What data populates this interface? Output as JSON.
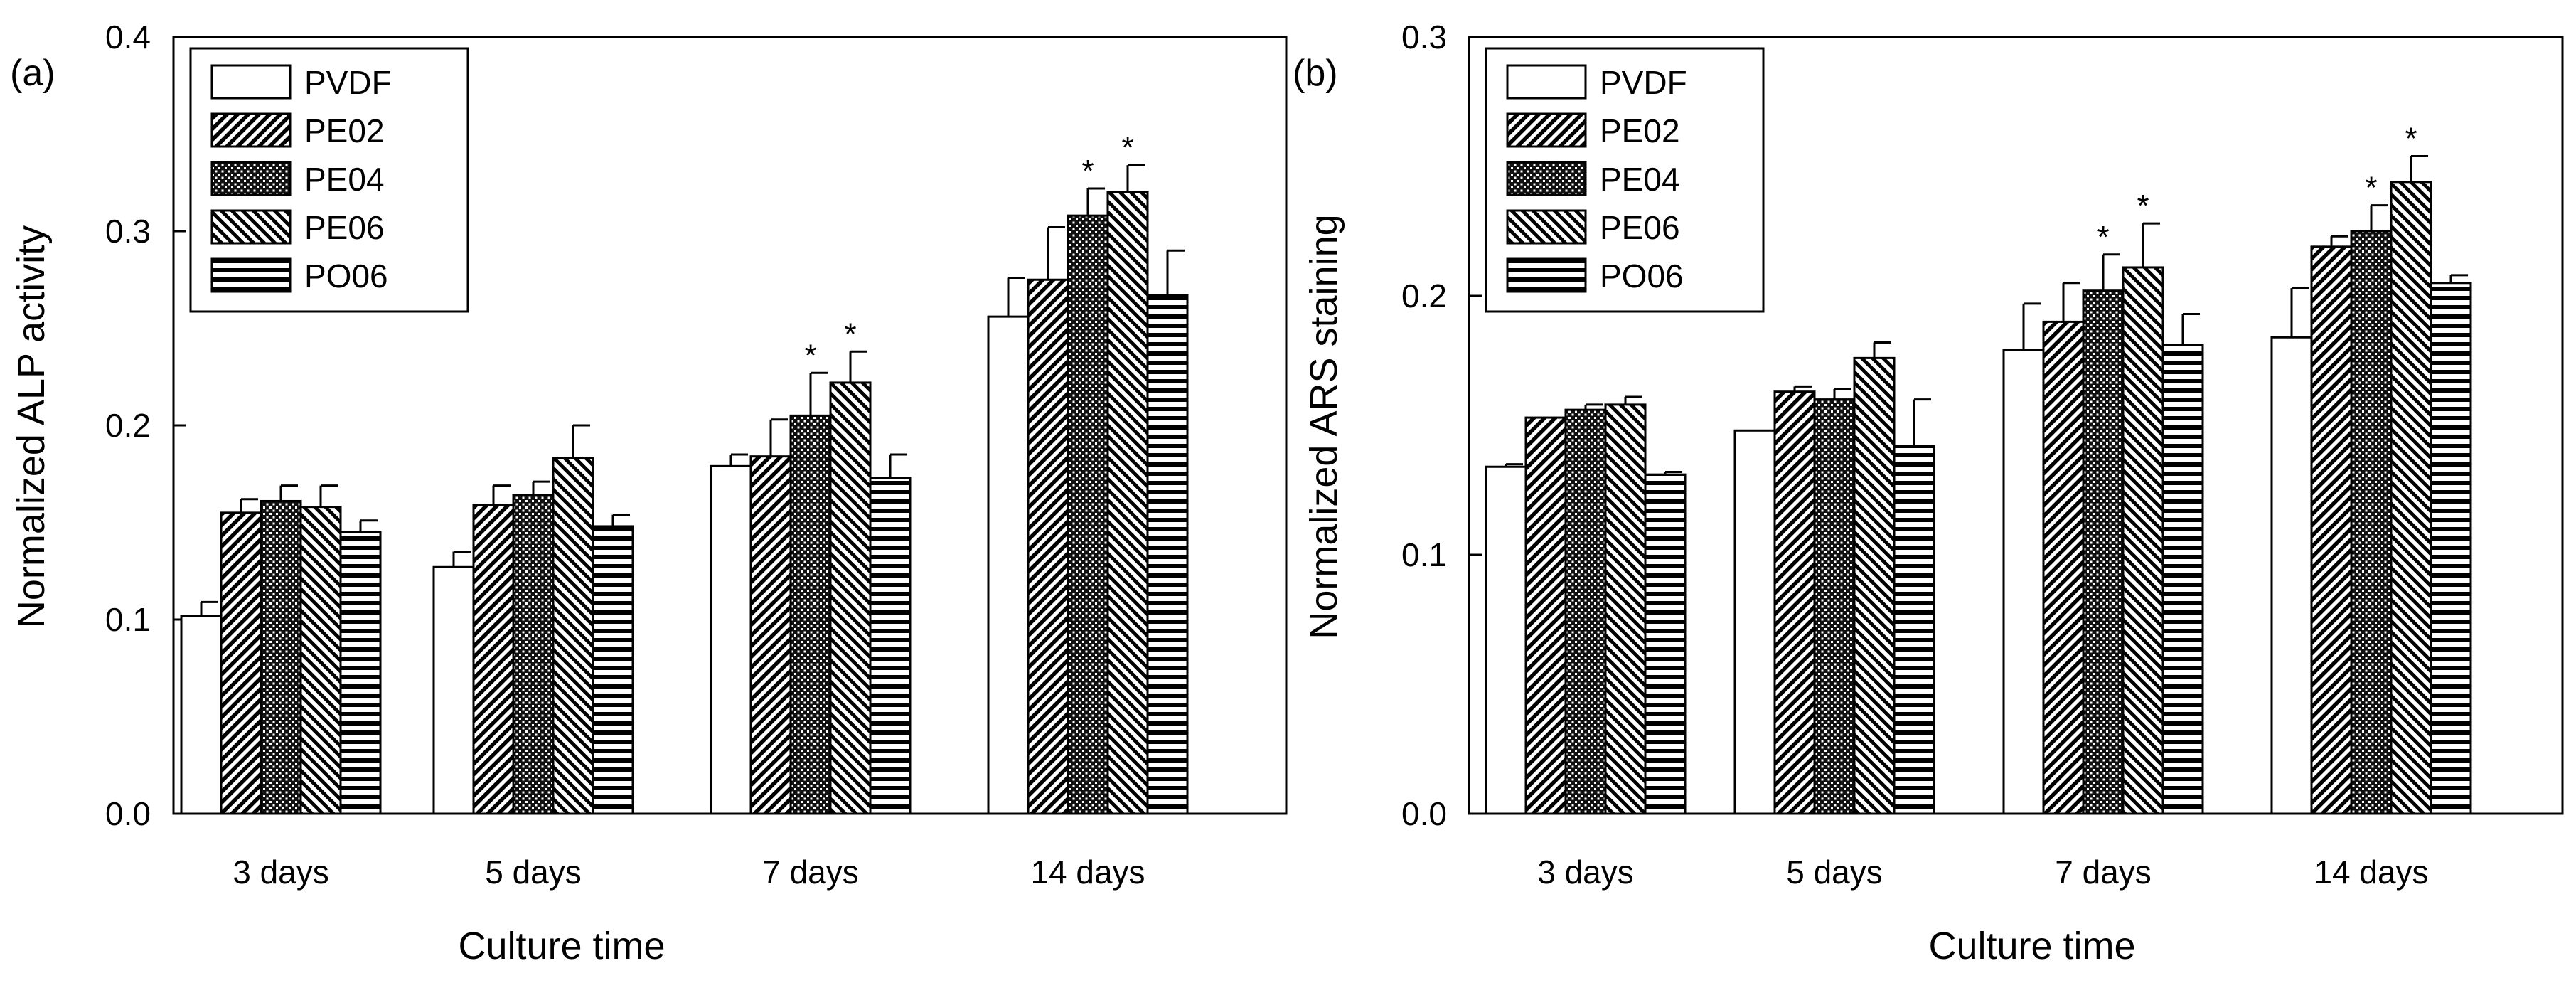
{
  "chart_data": [
    {
      "panel_label": "(a)",
      "type": "bar",
      "ylabel": "Normalized ALP activity",
      "xlabel": "Culture time",
      "ylim": [
        0,
        0.4
      ],
      "yticks": [
        0.0,
        0.1,
        0.2,
        0.3,
        0.4
      ],
      "ytick_labels": [
        "0.0",
        "0.1",
        "0.2",
        "0.3",
        "0.4"
      ],
      "categories": [
        "3 days",
        "5 days",
        "7 days",
        "14 days"
      ],
      "legend_position": "top-left",
      "series": [
        {
          "name": "PVDF",
          "pattern": "blank",
          "values": [
            0.102,
            0.127,
            0.179,
            0.256
          ],
          "errors": [
            0.007,
            0.008,
            0.006,
            0.02
          ],
          "significance": [
            "",
            "",
            "",
            ""
          ]
        },
        {
          "name": "PE02",
          "pattern": "diag-right",
          "values": [
            0.155,
            0.159,
            0.184,
            0.275
          ],
          "errors": [
            0.007,
            0.01,
            0.019,
            0.027
          ],
          "significance": [
            "",
            "",
            "",
            ""
          ]
        },
        {
          "name": "PE04",
          "pattern": "dots",
          "values": [
            0.161,
            0.164,
            0.205,
            0.308
          ],
          "errors": [
            0.008,
            0.007,
            0.022,
            0.014
          ],
          "significance": [
            "",
            "",
            "*",
            "*"
          ]
        },
        {
          "name": "PE06",
          "pattern": "diag-left",
          "values": [
            0.158,
            0.183,
            0.222,
            0.32
          ],
          "errors": [
            0.011,
            0.017,
            0.016,
            0.014
          ],
          "significance": [
            "",
            "",
            "*",
            "*"
          ]
        },
        {
          "name": "PO06",
          "pattern": "horizontal",
          "values": [
            0.145,
            0.148,
            0.173,
            0.267
          ],
          "errors": [
            0.006,
            0.006,
            0.012,
            0.023
          ],
          "significance": [
            "",
            "",
            "",
            ""
          ]
        }
      ]
    },
    {
      "panel_label": "(b)",
      "type": "bar",
      "ylabel": "Normalized ARS staining",
      "xlabel": "Culture time",
      "ylim": [
        0,
        0.3
      ],
      "yticks": [
        0.0,
        0.1,
        0.2,
        0.3
      ],
      "ytick_labels": [
        "0.0",
        "0.1",
        "0.2",
        "0.3"
      ],
      "categories": [
        "3 days",
        "5 days",
        "7 days",
        "14 days"
      ],
      "legend_position": "top-left",
      "series": [
        {
          "name": "PVDF",
          "pattern": "blank",
          "values": [
            0.134,
            0.148,
            0.179,
            0.184
          ],
          "errors": [
            0.001,
            0.0,
            0.018,
            0.019
          ],
          "significance": [
            "",
            "",
            "",
            ""
          ]
        },
        {
          "name": "PE02",
          "pattern": "diag-right",
          "values": [
            0.153,
            0.163,
            0.19,
            0.219
          ],
          "errors": [
            0.0,
            0.002,
            0.015,
            0.004
          ],
          "significance": [
            "",
            "",
            "",
            ""
          ]
        },
        {
          "name": "PE04",
          "pattern": "dots",
          "values": [
            0.156,
            0.16,
            0.202,
            0.225
          ],
          "errors": [
            0.002,
            0.004,
            0.014,
            0.01
          ],
          "significance": [
            "",
            "",
            "*",
            "*"
          ]
        },
        {
          "name": "PE06",
          "pattern": "diag-left",
          "values": [
            0.158,
            0.176,
            0.211,
            0.244
          ],
          "errors": [
            0.003,
            0.006,
            0.017,
            0.01
          ],
          "significance": [
            "",
            "",
            "*",
            "*"
          ]
        },
        {
          "name": "PO06",
          "pattern": "horizontal",
          "values": [
            0.131,
            0.142,
            0.181,
            0.205
          ],
          "errors": [
            0.001,
            0.018,
            0.012,
            0.003
          ],
          "significance": [
            "",
            "",
            "",
            ""
          ]
        }
      ]
    }
  ]
}
